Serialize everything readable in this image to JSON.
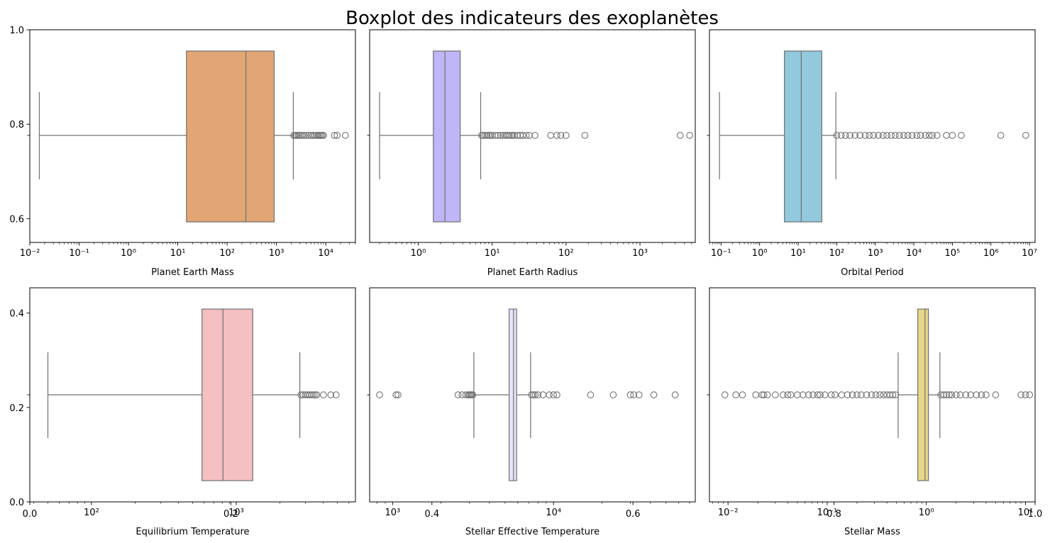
{
  "title": "Boxplot des indicateurs des exoplanètes",
  "colors": {
    "whisker": "#707070",
    "outlier_edge": "#707070",
    "frame": "#000000"
  },
  "overlay_axis": {
    "y_ticks": [
      "0.0",
      "0.2",
      "0.4",
      "0.6",
      "0.8",
      "1.0"
    ],
    "x_ticks": [
      "0.0",
      "0.2",
      "0.4",
      "0.6",
      "0.8",
      "1.0"
    ]
  },
  "chart_data": [
    {
      "type": "boxplot",
      "xlabel": "Planet Earth Mass",
      "xscale": "log",
      "xlim": [
        0.01,
        40000
      ],
      "x_tick_exponents": [
        -2,
        -1,
        0,
        1,
        2,
        3,
        4
      ],
      "color": "#e1a673",
      "box": {
        "whisker_low": 0.0156,
        "q1": 15,
        "median": 240,
        "q3": 900,
        "whisker_high": 2200
      },
      "outliers": [
        2250,
        2400,
        2600,
        2800,
        3000,
        3300,
        3600,
        4000,
        4500,
        5000,
        5500,
        6000,
        6500,
        7000,
        7500,
        8000,
        8500,
        9000,
        15000,
        17000,
        25000
      ]
    },
    {
      "type": "boxplot",
      "xlabel": "Planet Earth Radius",
      "xscale": "log",
      "xlim": [
        0.22,
        5600
      ],
      "x_tick_exponents": [
        0,
        1,
        2,
        3
      ],
      "color": "#beb6f6",
      "box": {
        "whisker_low": 0.3,
        "q1": 1.6,
        "median": 2.3,
        "q3": 3.7,
        "whisker_high": 7
      },
      "outliers": [
        7.2,
        7.5,
        8,
        8.5,
        9,
        9.5,
        10,
        11,
        12,
        13,
        14,
        15,
        16,
        17,
        18,
        19,
        20,
        22,
        24,
        26,
        29,
        32,
        38,
        62,
        75,
        85,
        100,
        180,
        3500,
        4700
      ]
    },
    {
      "type": "boxplot",
      "xlabel": "Orbital Period",
      "xscale": "log",
      "xlim": [
        0.05,
        14000000
      ],
      "x_tick_exponents": [
        -1,
        0,
        1,
        2,
        3,
        4,
        5,
        6,
        7
      ],
      "color": "#92c9dd",
      "box": {
        "whisker_low": 0.091,
        "q1": 4.4,
        "median": 12,
        "q3": 41,
        "whisker_high": 95
      },
      "outliers": [
        100,
        130,
        170,
        220,
        300,
        400,
        550,
        700,
        900,
        1200,
        1600,
        2000,
        2600,
        3300,
        4200,
        5500,
        7000,
        9000,
        12000,
        15000,
        20000,
        25000,
        30000,
        40000,
        70000,
        100000,
        170000,
        1800000,
        8000000
      ]
    },
    {
      "type": "boxplot",
      "xlabel": "Equilibrium Temperature",
      "xscale": "log",
      "xlim": [
        37.5,
        6660
      ],
      "x_tick_exponents": [
        2,
        3
      ],
      "color": "#f4c0c1",
      "box": {
        "whisker_low": 50,
        "q1": 580,
        "median": 810,
        "q3": 1300,
        "whisker_high": 2750
      },
      "outliers": [
        2800,
        2900,
        3000,
        3100,
        3200,
        3300,
        3400,
        3500,
        3600,
        4000,
        4500,
        4900
      ]
    },
    {
      "type": "boxplot",
      "xlabel": "Stellar Effective Temperature",
      "xscale": "log",
      "xlim": [
        720,
        76000
      ],
      "x_tick_exponents": [
        3,
        4
      ],
      "color": "#e7e4fb",
      "box": {
        "whisker_low": 3200,
        "q1": 5300,
        "median": 5640,
        "q3": 5900,
        "whisker_high": 7200
      },
      "outliers": [
        830,
        1050,
        1080,
        2550,
        2700,
        2850,
        2950,
        3000,
        3050,
        3100,
        3150,
        7300,
        7500,
        7700,
        8000,
        8600,
        9400,
        10000,
        10500,
        17000,
        23500,
        30000,
        31500,
        34000,
        42000,
        57000
      ]
    },
    {
      "type": "boxplot",
      "xlabel": "Stellar Mass",
      "xscale": "log",
      "xlim": [
        0.0065,
        12.5
      ],
      "x_tick_exponents": [
        -2,
        -1,
        0,
        1
      ],
      "color": "#e7d788",
      "box": {
        "whisker_low": 0.52,
        "q1": 0.82,
        "median": 0.97,
        "q3": 1.05,
        "whisker_high": 1.37
      },
      "outliers": [
        0.0093,
        0.012,
        0.014,
        0.019,
        0.022,
        0.023,
        0.025,
        0.03,
        0.036,
        0.04,
        0.043,
        0.05,
        0.057,
        0.065,
        0.072,
        0.08,
        0.085,
        0.095,
        0.11,
        0.12,
        0.14,
        0.16,
        0.18,
        0.2,
        0.22,
        0.25,
        0.28,
        0.31,
        0.34,
        0.37,
        0.4,
        0.43,
        0.46,
        0.49,
        1.4,
        1.5,
        1.6,
        1.7,
        1.8,
        2.0,
        2.2,
        2.5,
        2.8,
        3.2,
        3.6,
        4.0,
        5.0,
        9.0,
        10.0,
        11.0
      ]
    }
  ]
}
